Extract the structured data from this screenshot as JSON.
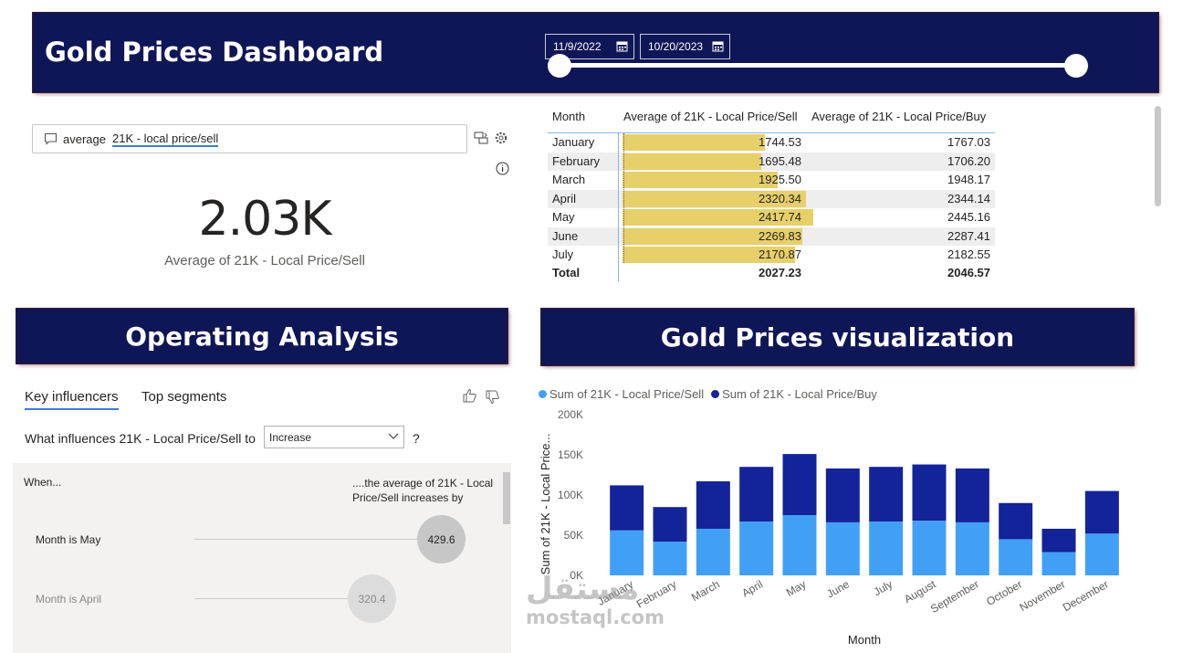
{
  "header": {
    "title": "Gold Prices Dashboard",
    "date_start": "11/9/2022",
    "date_end": "10/20/2023"
  },
  "qa": {
    "prefix": "average",
    "term": "21K - local price/sell",
    "kpi_value": "2.03K",
    "kpi_label": "Average of 21K - Local Price/Sell"
  },
  "table": {
    "columns": [
      "Month",
      "Average of 21K - Local Price/Sell",
      "Average of 21K - Local Price/Buy"
    ],
    "rows": [
      {
        "month": "January",
        "sell": "1744.53",
        "buy": "1767.03",
        "sell_value": 1744.53
      },
      {
        "month": "February",
        "sell": "1695.48",
        "buy": "1706.20",
        "sell_value": 1695.48
      },
      {
        "month": "March",
        "sell": "1925.50",
        "buy": "1948.17",
        "sell_value": 1925.5
      },
      {
        "month": "April",
        "sell": "2320.34",
        "buy": "2344.14",
        "sell_value": 2320.34
      },
      {
        "month": "May",
        "sell": "2417.74",
        "buy": "2445.16",
        "sell_value": 2417.74
      },
      {
        "month": "June",
        "sell": "2269.83",
        "buy": "2287.41",
        "sell_value": 2269.83
      },
      {
        "month": "July",
        "sell": "2170.87",
        "buy": "2182.55",
        "sell_value": 2170.87
      }
    ],
    "total": {
      "label": "Total",
      "sell": "2027.23",
      "buy": "2046.57"
    },
    "bar_color": "#e7cf6a"
  },
  "sections": {
    "operating": "Operating Analysis",
    "visualization": "Gold Prices visualization"
  },
  "influencers": {
    "tab_key": "Key influencers",
    "tab_top": "Top segments",
    "question": "What influences 21K - Local Price/Sell to",
    "select_value": "Increase",
    "question_mark": "?",
    "when": "When...",
    "then": "....the average of 21K - Local Price/Sell increases by",
    "items": [
      {
        "label": "Month is May",
        "value": "429.6"
      },
      {
        "label": "Month is April",
        "value": "320.4"
      }
    ]
  },
  "chart_data": {
    "type": "bar",
    "stacked": true,
    "categories": [
      "January",
      "February",
      "March",
      "April",
      "May",
      "June",
      "July",
      "August",
      "September",
      "October",
      "November",
      "December"
    ],
    "series": [
      {
        "name": "Sum of 21K - Local Price/Sell",
        "color": "#41a0f5",
        "values": [
          56000,
          42000,
          58000,
          67000,
          75000,
          66000,
          67000,
          68000,
          66000,
          45000,
          29000,
          52000
        ]
      },
      {
        "name": "Sum of 21K - Local Price/Buy",
        "color": "#13239a",
        "values": [
          56000,
          43000,
          59000,
          68000,
          76000,
          67000,
          68000,
          70000,
          67000,
          45000,
          29000,
          53000
        ]
      }
    ],
    "xlabel": "Month",
    "ylabel": "Sum of 21K - Local Price...",
    "ylim": [
      0,
      200000
    ],
    "yticks": [
      "0K",
      "50K",
      "100K",
      "150K",
      "200K"
    ],
    "grid": false,
    "legend": "top-left"
  },
  "watermark": {
    "arabic": "مستقل",
    "latin": "mostaql.com"
  }
}
